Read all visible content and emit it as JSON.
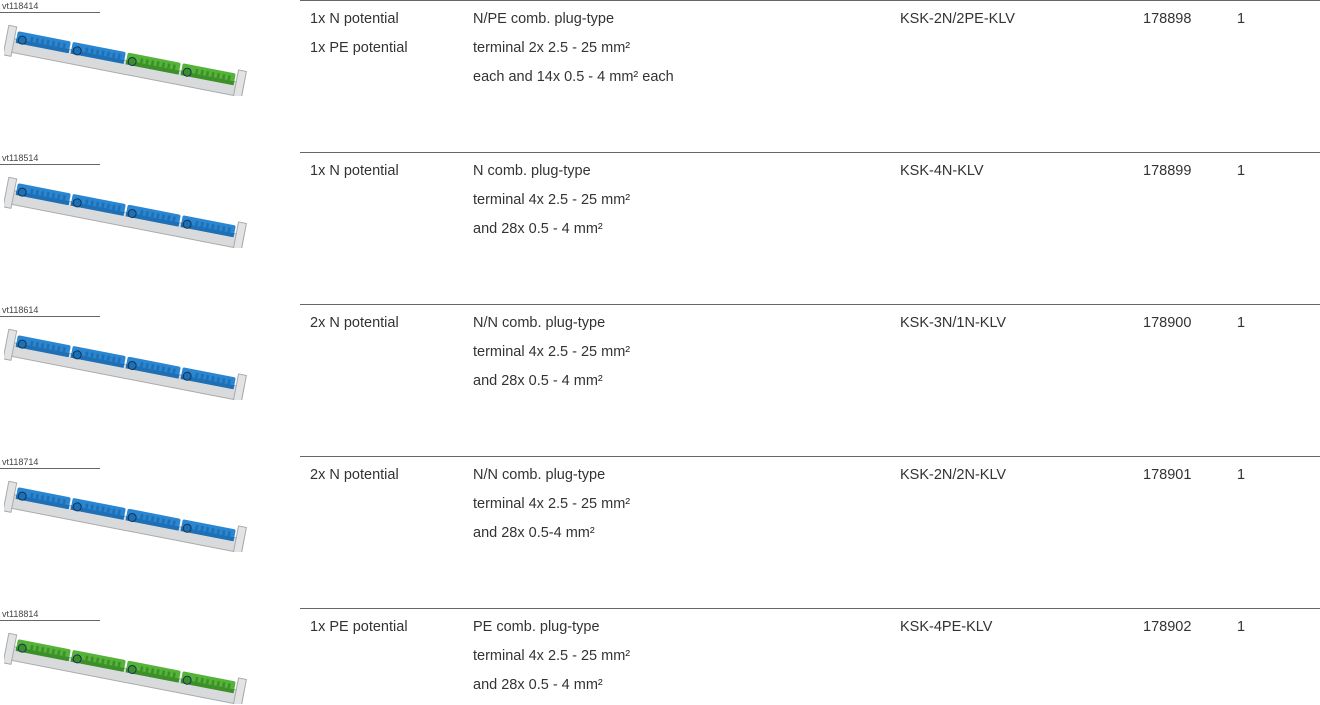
{
  "rows": [
    {
      "image_id": "vt118414",
      "potential": [
        "1x N potential",
        "1x PE potential"
      ],
      "description": [
        "N/PE comb. plug-type",
        "terminal 2x 2.5 - 25 mm²",
        "each and 14x 0.5 - 4 mm² each"
      ],
      "type": "KSK-2N/2PE-KLV",
      "article_no": "178898",
      "pack": "1"
    },
    {
      "image_id": "vt118514",
      "potential": [
        "1x N potential"
      ],
      "description": [
        "N comb. plug-type",
        "terminal 4x 2.5 - 25 mm²",
        "and 28x 0.5 - 4 mm²"
      ],
      "type": "KSK-4N-KLV",
      "article_no": "178899",
      "pack": "1"
    },
    {
      "image_id": "vt118614",
      "potential": [
        "2x N potential"
      ],
      "description": [
        "N/N comb. plug-type",
        "terminal 4x 2.5 - 25 mm²",
        "and 28x 0.5 - 4 mm²"
      ],
      "type": "KSK-3N/1N-KLV",
      "article_no": "178900",
      "pack": "1"
    },
    {
      "image_id": "vt118714",
      "potential": [
        "2x N potential"
      ],
      "description": [
        "N/N comb. plug-type",
        "terminal 4x 2.5 - 25 mm²",
        "and 28x 0.5-4 mm²"
      ],
      "type": "KSK-2N/2N-KLV",
      "article_no": "178901",
      "pack": "1"
    },
    {
      "image_id": "vt118814",
      "potential": [
        "1x PE potential"
      ],
      "description": [
        "PE comb. plug-type",
        "terminal 4x 2.5 - 25 mm²",
        "and 28x 0.5 - 4 mm²"
      ],
      "type": "KSK-4PE-KLV",
      "article_no": "178902",
      "pack": "1"
    }
  ]
}
